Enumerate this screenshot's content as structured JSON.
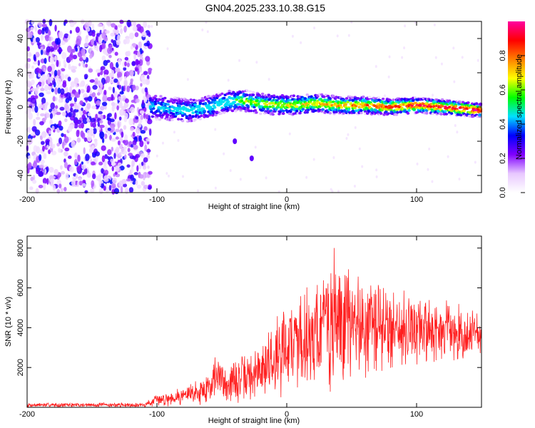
{
  "figure": {
    "title": "GN04.2025.233.10.38.G15"
  },
  "chart_data": [
    {
      "type": "heatmap",
      "xlabel": "Height of straight line (km)",
      "ylabel": "Frequency (Hz)",
      "xlim": [
        -200,
        150
      ],
      "ylim": [
        -50,
        50
      ],
      "x_ticks": [
        "-200",
        "-100",
        "0",
        "100"
      ],
      "y_ticks": [
        "-40",
        "-20",
        "0",
        "20",
        "40"
      ],
      "colorbar": {
        "label": "Normalized spectral amplitude",
        "range": [
          0,
          1
        ],
        "ticks": [
          "0.0",
          "0.2",
          "0.4",
          "0.6",
          "0.8"
        ],
        "colors": [
          "#ffffff",
          "#e8c8ff",
          "#8000ff",
          "#0000ff",
          "#00e0ff",
          "#00ff00",
          "#ffff00",
          "#ff8000",
          "#ff0000",
          "#ff00a0"
        ]
      },
      "noise_region_x": [
        -200,
        -105
      ],
      "signal_region_x": [
        -105,
        150
      ],
      "ridge": [
        {
          "x": -105,
          "y": 0
        },
        {
          "x": -90,
          "y": -1
        },
        {
          "x": -75,
          "y": -2
        },
        {
          "x": -60,
          "y": 0
        },
        {
          "x": -45,
          "y": 3
        },
        {
          "x": -35,
          "y": 4
        },
        {
          "x": -20,
          "y": 2
        },
        {
          "x": 0,
          "y": 1
        },
        {
          "x": 25,
          "y": 2
        },
        {
          "x": 40,
          "y": 1
        },
        {
          "x": 60,
          "y": 1
        },
        {
          "x": 80,
          "y": 0
        },
        {
          "x": 100,
          "y": 1
        },
        {
          "x": 120,
          "y": 0
        },
        {
          "x": 150,
          "y": -2
        }
      ],
      "outliers": [
        {
          "x": -40,
          "y": -20
        },
        {
          "x": -27,
          "y": -30
        }
      ]
    },
    {
      "type": "line",
      "xlabel": "Height of straight line (km)",
      "ylabel": "SNR (10 * v/v)",
      "xlim": [
        -200,
        150
      ],
      "ylim": [
        0,
        8600
      ],
      "x_ticks": [
        "-200",
        "-100",
        "0",
        "100"
      ],
      "y_ticks": [
        "2000",
        "4000",
        "6000",
        "8000"
      ],
      "color": "#ff2020",
      "envelope": [
        {
          "x": -200,
          "base": 120,
          "amp": 120
        },
        {
          "x": -110,
          "base": 120,
          "amp": 130
        },
        {
          "x": -100,
          "base": 350,
          "amp": 350
        },
        {
          "x": -80,
          "base": 600,
          "amp": 500
        },
        {
          "x": -62,
          "base": 900,
          "amp": 900
        },
        {
          "x": -55,
          "base": 1600,
          "amp": 1300
        },
        {
          "x": -45,
          "base": 1200,
          "amp": 1200
        },
        {
          "x": -25,
          "base": 1600,
          "amp": 1500
        },
        {
          "x": -10,
          "base": 2500,
          "amp": 2200
        },
        {
          "x": 0,
          "base": 3200,
          "amp": 2600
        },
        {
          "x": 20,
          "base": 3700,
          "amp": 3200
        },
        {
          "x": 35,
          "base": 4300,
          "amp": 4100
        },
        {
          "x": 50,
          "base": 4200,
          "amp": 3200
        },
        {
          "x": 80,
          "base": 4000,
          "amp": 2500
        },
        {
          "x": 110,
          "base": 3900,
          "amp": 1800
        },
        {
          "x": 150,
          "base": 3600,
          "amp": 1500
        }
      ]
    }
  ]
}
